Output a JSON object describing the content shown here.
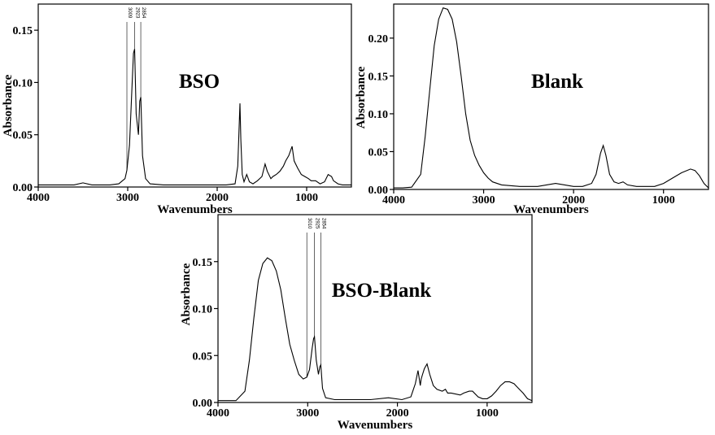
{
  "chart_data": [
    {
      "type": "line",
      "title": "BSO",
      "xlabel": "Wavenumbers",
      "ylabel": "Absorbance",
      "xlim": [
        4000,
        500
      ],
      "ylim": [
        0,
        0.175
      ],
      "x_ticks": [
        4000,
        3000,
        2000,
        1000
      ],
      "x_tick_labels": [
        "4000",
        "3000",
        "2000",
        "1000"
      ],
      "y_ticks": [
        0,
        0.05,
        0.1,
        0.15
      ],
      "y_tick_labels": [
        "0.00",
        "0.05",
        "0.10",
        "0.15"
      ],
      "peak_labels": [
        {
          "x": 3009,
          "label": "3009"
        },
        {
          "x": 2923,
          "label": "2923"
        },
        {
          "x": 2854,
          "label": "2854"
        }
      ],
      "series": [
        {
          "x": [
            4000,
            3800,
            3600,
            3500,
            3400,
            3200,
            3100,
            3030,
            3009,
            2980,
            2950,
            2935,
            2923,
            2905,
            2880,
            2865,
            2854,
            2835,
            2800,
            2750,
            2600,
            2400,
            2200,
            2000,
            1900,
            1800,
            1770,
            1745,
            1735,
            1720,
            1700,
            1670,
            1640,
            1600,
            1550,
            1500,
            1465,
            1440,
            1400,
            1377,
            1340,
            1300,
            1260,
            1235,
            1200,
            1163,
            1140,
            1100,
            1060,
            1020,
            980,
            950,
            900,
            850,
            800,
            760,
            722,
            700,
            650,
            600,
            550,
            500
          ],
          "y": [
            0.002,
            0.002,
            0.002,
            0.004,
            0.002,
            0.002,
            0.003,
            0.008,
            0.016,
            0.04,
            0.1,
            0.128,
            0.132,
            0.07,
            0.05,
            0.082,
            0.086,
            0.03,
            0.008,
            0.003,
            0.002,
            0.002,
            0.002,
            0.002,
            0.002,
            0.003,
            0.02,
            0.08,
            0.045,
            0.012,
            0.005,
            0.012,
            0.005,
            0.003,
            0.006,
            0.01,
            0.022,
            0.015,
            0.008,
            0.01,
            0.012,
            0.015,
            0.02,
            0.025,
            0.03,
            0.039,
            0.025,
            0.018,
            0.012,
            0.01,
            0.008,
            0.006,
            0.006,
            0.003,
            0.005,
            0.012,
            0.01,
            0.006,
            0.003,
            0.002,
            0.002,
            0.002
          ]
        }
      ]
    },
    {
      "type": "line",
      "title": "Blank",
      "xlabel": "Wavenumbers",
      "ylabel": "Absorbance",
      "xlim": [
        4000,
        500
      ],
      "ylim": [
        0,
        0.245
      ],
      "x_ticks": [
        4000,
        3000,
        2000,
        1000
      ],
      "x_tick_labels": [
        "4000",
        "3000",
        "2000",
        "1000"
      ],
      "y_ticks": [
        0,
        0.05,
        0.1,
        0.15,
        0.2
      ],
      "y_tick_labels": [
        "0.00",
        "0.05",
        "0.10",
        "0.15",
        "0.20"
      ],
      "series": [
        {
          "x": [
            4000,
            3900,
            3800,
            3700,
            3650,
            3600,
            3550,
            3500,
            3450,
            3400,
            3350,
            3300,
            3250,
            3200,
            3150,
            3100,
            3050,
            3000,
            2950,
            2900,
            2800,
            2600,
            2400,
            2200,
            2100,
            2000,
            1900,
            1800,
            1750,
            1700,
            1670,
            1640,
            1600,
            1550,
            1500,
            1450,
            1400,
            1300,
            1200,
            1100,
            1000,
            900,
            800,
            700,
            650,
            600,
            550,
            500
          ],
          "y": [
            0.002,
            0.002,
            0.003,
            0.02,
            0.07,
            0.13,
            0.19,
            0.225,
            0.24,
            0.238,
            0.225,
            0.195,
            0.15,
            0.1,
            0.065,
            0.045,
            0.032,
            0.022,
            0.015,
            0.01,
            0.006,
            0.004,
            0.004,
            0.008,
            0.006,
            0.004,
            0.004,
            0.008,
            0.02,
            0.048,
            0.058,
            0.045,
            0.02,
            0.01,
            0.008,
            0.01,
            0.006,
            0.004,
            0.004,
            0.004,
            0.008,
            0.015,
            0.022,
            0.027,
            0.025,
            0.018,
            0.008,
            0.002
          ]
        }
      ]
    },
    {
      "type": "line",
      "title": "BSO-Blank",
      "xlabel": "Wavenumbers",
      "ylabel": "Absorbance",
      "xlim": [
        4000,
        500
      ],
      "ylim": [
        0,
        0.2
      ],
      "x_ticks": [
        4000,
        3000,
        2000,
        1000
      ],
      "x_tick_labels": [
        "4000",
        "3000",
        "2000",
        "1000"
      ],
      "y_ticks": [
        0,
        0.05,
        0.1,
        0.15
      ],
      "y_tick_labels": [
        "0.00",
        "0.05",
        "0.10",
        "0.15"
      ],
      "peak_labels": [
        {
          "x": 3010,
          "label": "3010"
        },
        {
          "x": 2925,
          "label": "2925"
        },
        {
          "x": 2854,
          "label": "2854"
        }
      ],
      "series": [
        {
          "x": [
            4000,
            3900,
            3800,
            3700,
            3650,
            3600,
            3550,
            3500,
            3450,
            3400,
            3350,
            3300,
            3250,
            3200,
            3150,
            3100,
            3050,
            3010,
            2980,
            2950,
            2935,
            2925,
            2905,
            2880,
            2865,
            2854,
            2835,
            2800,
            2700,
            2500,
            2300,
            2100,
            1950,
            1850,
            1800,
            1770,
            1745,
            1735,
            1720,
            1700,
            1670,
            1640,
            1600,
            1560,
            1500,
            1465,
            1440,
            1400,
            1300,
            1260,
            1200,
            1163,
            1100,
            1050,
            1000,
            950,
            900,
            850,
            800,
            750,
            700,
            650,
            600,
            550,
            500
          ],
          "y": [
            0.002,
            0.002,
            0.002,
            0.012,
            0.045,
            0.09,
            0.13,
            0.148,
            0.154,
            0.151,
            0.14,
            0.12,
            0.09,
            0.062,
            0.045,
            0.03,
            0.025,
            0.027,
            0.035,
            0.058,
            0.068,
            0.07,
            0.045,
            0.03,
            0.038,
            0.04,
            0.015,
            0.005,
            0.003,
            0.003,
            0.003,
            0.005,
            0.003,
            0.006,
            0.02,
            0.034,
            0.018,
            0.025,
            0.03,
            0.036,
            0.041,
            0.03,
            0.018,
            0.014,
            0.012,
            0.014,
            0.01,
            0.01,
            0.008,
            0.01,
            0.012,
            0.012,
            0.006,
            0.004,
            0.004,
            0.007,
            0.012,
            0.018,
            0.022,
            0.022,
            0.02,
            0.015,
            0.01,
            0.004,
            0.002
          ]
        }
      ]
    }
  ]
}
